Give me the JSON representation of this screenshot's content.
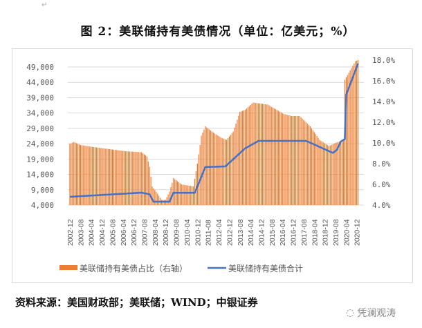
{
  "figure_title": "图 2：美联储持有美债情况（单位：亿美元；%）",
  "source": "资料来源：美国财政部；美联储；WIND；中银证券",
  "watermark": "凭澜观涛",
  "chart_data": {
    "type": "bar+line",
    "title": "图 2：美联储持有美债情况（单位：亿美元；%）",
    "x_tick_labels": [
      "2002-12",
      "2003-08",
      "2004-04",
      "2004-12",
      "2005-08",
      "2006-04",
      "2006-12",
      "2007-08",
      "2008-04",
      "2008-12",
      "2009-08",
      "2010-04",
      "2010-12",
      "2011-08",
      "2012-04",
      "2012-12",
      "2013-08",
      "2014-04",
      "2014-12",
      "2015-08",
      "2016-04",
      "2016-12",
      "2017-08",
      "2018-04",
      "2018-12",
      "2019-08",
      "2020-04",
      "2020-12"
    ],
    "x_range": [
      "2002-12",
      "2021-01"
    ],
    "left_axis": {
      "ticks": [
        "4,000",
        "9,000",
        "14,000",
        "19,000",
        "24,000",
        "29,000",
        "34,000",
        "39,000",
        "44,000",
        "49,000"
      ],
      "min": 4000,
      "max": 49000,
      "grid": true
    },
    "right_axis": {
      "ticks": [
        "4.0%",
        "6.0%",
        "8.0%",
        "10.0%",
        "12.0%",
        "14.0%",
        "16.0%",
        "18.0%"
      ],
      "min": 4,
      "max": 18
    },
    "legend_position": "bottom",
    "series": [
      {
        "name": "美联储持有美债占比（右轴）",
        "type": "bar",
        "axis": "right",
        "unit": "%",
        "color": "#ED7D31",
        "keypoints": [
          [
            "2002-12",
            9.9
          ],
          [
            "2003-03",
            10.1
          ],
          [
            "2003-08",
            9.8
          ],
          [
            "2004-06",
            9.6
          ],
          [
            "2005-06",
            9.4
          ],
          [
            "2006-06",
            9.2
          ],
          [
            "2007-06",
            9.1
          ],
          [
            "2007-10",
            8.7
          ],
          [
            "2007-12",
            7.7
          ],
          [
            "2008-02",
            5.8
          ],
          [
            "2008-06",
            5.1
          ],
          [
            "2008-09",
            4.5
          ],
          [
            "2008-12",
            4.5
          ],
          [
            "2009-03",
            5.3
          ],
          [
            "2009-06",
            6.6
          ],
          [
            "2009-12",
            6.0
          ],
          [
            "2010-09",
            5.8
          ],
          [
            "2010-12",
            8.0
          ],
          [
            "2011-03",
            10.7
          ],
          [
            "2011-06",
            11.6
          ],
          [
            "2011-12",
            11.0
          ],
          [
            "2012-06",
            10.5
          ],
          [
            "2012-10",
            10.3
          ],
          [
            "2013-03",
            11.1
          ],
          [
            "2013-08",
            13.0
          ],
          [
            "2013-12",
            13.2
          ],
          [
            "2014-06",
            13.9
          ],
          [
            "2015-05",
            13.7
          ],
          [
            "2016-05",
            12.8
          ],
          [
            "2016-11",
            12.6
          ],
          [
            "2017-05",
            12.6
          ],
          [
            "2018-01",
            11.6
          ],
          [
            "2018-08",
            10.3
          ],
          [
            "2019-03",
            9.7
          ],
          [
            "2019-08",
            10.0
          ],
          [
            "2020-02",
            10.3
          ],
          [
            "2020-03",
            16.1
          ],
          [
            "2020-11",
            17.9
          ],
          [
            "2021-01",
            18.0
          ]
        ]
      },
      {
        "name": "美联储持有美债合计",
        "type": "line",
        "axis": "left",
        "unit": "亿美元",
        "color": "#4472C4",
        "keypoints": [
          [
            "2002-12",
            6700
          ],
          [
            "2004-12",
            7300
          ],
          [
            "2007-06",
            8050
          ],
          [
            "2007-12",
            7500
          ],
          [
            "2008-03",
            5100
          ],
          [
            "2009-03",
            5100
          ],
          [
            "2009-06",
            8000
          ],
          [
            "2010-10",
            8000
          ],
          [
            "2011-06",
            16400
          ],
          [
            "2012-09",
            16600
          ],
          [
            "2013-12",
            22500
          ],
          [
            "2014-10",
            24900
          ],
          [
            "2017-10",
            24900
          ],
          [
            "2019-06",
            21000
          ],
          [
            "2019-09",
            22000
          ],
          [
            "2019-12",
            24700
          ],
          [
            "2020-03",
            25500
          ],
          [
            "2020-04",
            40000
          ],
          [
            "2021-01",
            50100
          ]
        ]
      }
    ]
  }
}
